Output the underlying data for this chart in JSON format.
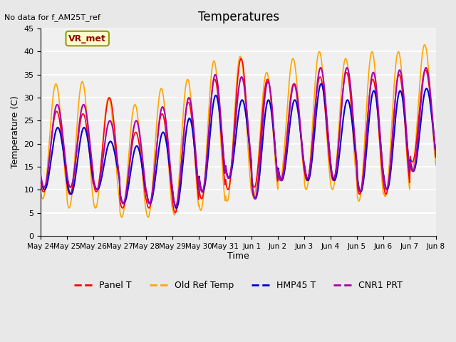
{
  "title": "Temperatures",
  "xlabel": "Time",
  "ylabel": "Temperature (C)",
  "note": "No data for f_AM25T_ref",
  "annotation": "VR_met",
  "ylim": [
    0,
    45
  ],
  "x_tick_labels": [
    "May 24",
    "May 25",
    "May 26",
    "May 27",
    "May 28",
    "May 29",
    "May 30",
    "May 31",
    "Jun 1",
    "Jun 2",
    "Jun 3",
    "Jun 4",
    "Jun 5",
    "Jun 6",
    "Jun 7",
    "Jun 8"
  ],
  "colors": {
    "Panel T": "#ff0000",
    "Old Ref Temp": "#ffa500",
    "HMP45 T": "#0000cc",
    "CNR1 PRT": "#aa00aa"
  },
  "bg_color": "#e8e8e8",
  "plot_bg_color": "#f0f0f0",
  "grid_color": "#ffffff",
  "legend_entries": [
    "Panel T",
    "Old Ref Temp",
    "HMP45 T",
    "CNR1 PRT"
  ],
  "n_days": 15,
  "points_per_day": 48,
  "panel_t_base_min": [
    9.5,
    9.0,
    9.5,
    6.0,
    6.0,
    5.0,
    8.0,
    10.0,
    10.5,
    12.0,
    12.0,
    12.0,
    9.0,
    9.0,
    16.0
  ],
  "panel_t_base_max": [
    27.0,
    26.5,
    30.0,
    22.5,
    26.5,
    29.0,
    34.0,
    38.5,
    34.0,
    33.0,
    34.5,
    35.5,
    34.0,
    35.0,
    36.0
  ],
  "old_ref_min": [
    8.0,
    6.0,
    6.0,
    4.0,
    4.0,
    4.5,
    5.5,
    7.5,
    8.5,
    12.0,
    10.0,
    10.0,
    7.5,
    8.5,
    14.0
  ],
  "old_ref_max": [
    33.0,
    33.5,
    30.0,
    28.5,
    32.0,
    34.0,
    38.0,
    39.0,
    35.5,
    38.5,
    40.0,
    38.5,
    40.0,
    40.0,
    41.5
  ],
  "hmp45_min": [
    10.0,
    9.0,
    10.0,
    7.0,
    7.0,
    6.0,
    9.5,
    12.5,
    8.0,
    12.0,
    12.0,
    12.0,
    9.5,
    10.0,
    14.0
  ],
  "hmp45_max": [
    23.5,
    23.5,
    20.5,
    19.5,
    22.5,
    25.5,
    30.5,
    29.5,
    29.5,
    29.5,
    33.0,
    29.5,
    31.5,
    31.5,
    32.0
  ],
  "cnr1_min": [
    10.5,
    10.5,
    10.0,
    7.0,
    7.0,
    6.5,
    9.5,
    12.5,
    8.0,
    12.0,
    12.5,
    12.5,
    9.5,
    10.0,
    14.0
  ],
  "cnr1_max": [
    28.5,
    28.5,
    25.0,
    25.0,
    28.0,
    30.0,
    35.0,
    34.5,
    33.5,
    33.0,
    36.5,
    36.5,
    35.5,
    36.0,
    36.5
  ]
}
